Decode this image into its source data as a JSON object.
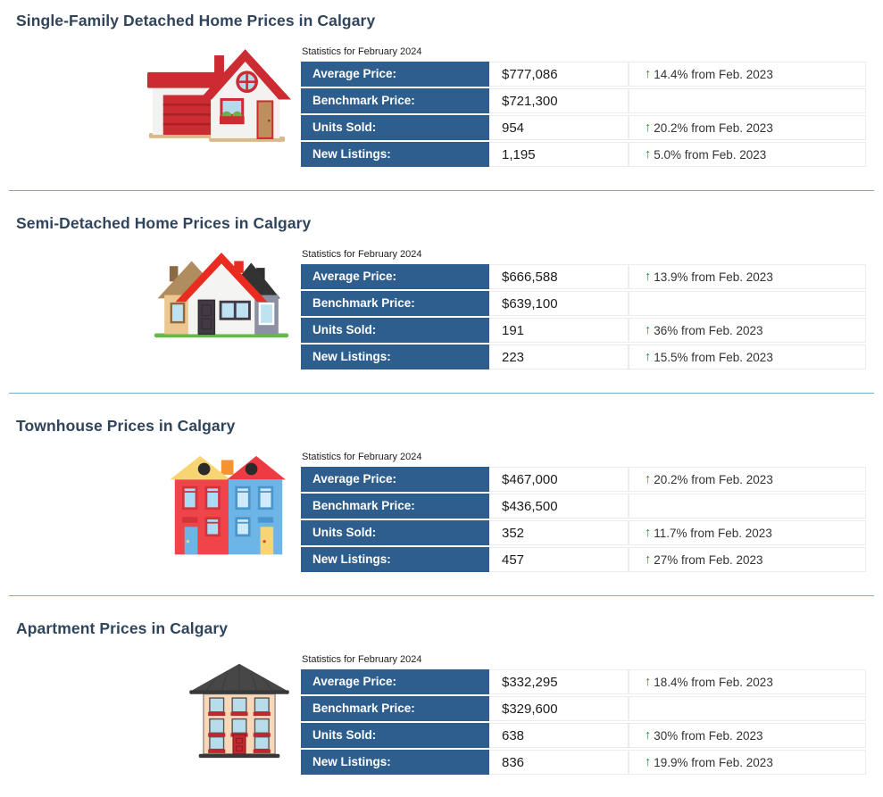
{
  "colors": {
    "table_header_bg": "#2e5e8e",
    "section_title": "#30455c",
    "divider": "#74b0d2",
    "arrow_green": "#1f9339",
    "value_text": "#1b1b1b"
  },
  "icons": {
    "up_arrow": "↑"
  },
  "sections": [
    {
      "id": "single-family",
      "icon": "single-family-house-icon",
      "title": "Single-Family Detached Home Prices in Calgary",
      "stats_caption": "Statistics for February 2024",
      "rows": [
        {
          "label": "Average Price:",
          "value": "$777,086",
          "change": "14.4% from Feb. 2023"
        },
        {
          "label": "Benchmark Price:",
          "value": "$721,300",
          "change": ""
        },
        {
          "label": "Units Sold:",
          "value": "954",
          "change": "20.2% from Feb. 2023"
        },
        {
          "label": "New Listings:",
          "value": "1,195",
          "change": "5.0% from Feb. 2023"
        }
      ]
    },
    {
      "id": "semi-detached",
      "icon": "semi-detached-house-icon",
      "title": "Semi-Detached Home Prices in Calgary",
      "stats_caption": "Statistics for February 2024",
      "rows": [
        {
          "label": "Average Price:",
          "value": "$666,588",
          "change": "13.9% from Feb. 2023"
        },
        {
          "label": "Benchmark Price:",
          "value": "$639,100",
          "change": ""
        },
        {
          "label": "Units Sold:",
          "value": "191",
          "change": "36% from Feb. 2023"
        },
        {
          "label": "New Listings:",
          "value": "223",
          "change": "15.5% from Feb. 2023"
        }
      ]
    },
    {
      "id": "townhouse",
      "icon": "townhouse-icon",
      "title": "Townhouse Prices in Calgary",
      "stats_caption": "Statistics for February 2024",
      "rows": [
        {
          "label": "Average Price:",
          "value": "$467,000",
          "change": "20.2% from Feb. 2023"
        },
        {
          "label": "Benchmark Price:",
          "value": "$436,500",
          "change": ""
        },
        {
          "label": "Units Sold:",
          "value": "352",
          "change": "11.7% from Feb. 2023"
        },
        {
          "label": "New Listings:",
          "value": "457",
          "change": "27% from Feb. 2023"
        }
      ]
    },
    {
      "id": "apartment",
      "icon": "apartment-building-icon",
      "title": "Apartment Prices in Calgary",
      "stats_caption": "Statistics for February 2024",
      "rows": [
        {
          "label": "Average Price:",
          "value": "$332,295",
          "change": "18.4% from Feb. 2023"
        },
        {
          "label": "Benchmark Price:",
          "value": "$329,600",
          "change": ""
        },
        {
          "label": "Units Sold:",
          "value": "638",
          "change": "30% from Feb. 2023"
        },
        {
          "label": "New Listings:",
          "value": "836",
          "change": "19.9% from Feb. 2023"
        }
      ]
    }
  ]
}
